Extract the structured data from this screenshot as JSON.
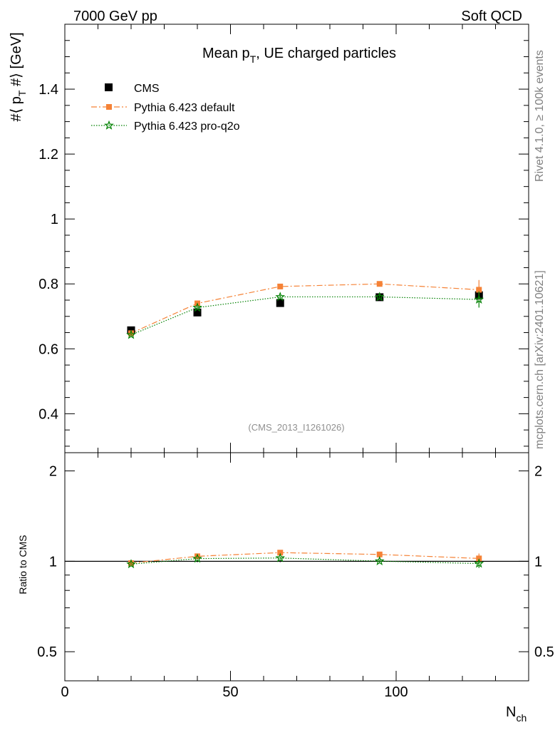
{
  "header": {
    "left": "7000 GeV pp",
    "right": "Soft QCD"
  },
  "side": {
    "rivet": "Rivet 4.1.0, ≥ 100k events",
    "mcplots": "mcplots.cern.ch [arXiv:2401.10621]"
  },
  "chart_data": {
    "type": "scatter",
    "title": "Mean p_T, UE charged particles",
    "analysis": "(CMS_2013_I1261026)",
    "ylabel": "#⟨ p_T #⟩ [GeV]",
    "xlabel": "N_ch",
    "xlim": [
      0,
      140
    ],
    "ylim": [
      0.28,
      1.6
    ],
    "xticks": [
      0,
      50,
      100
    ],
    "yticks": [
      0.4,
      0.6,
      0.8,
      1,
      1.2,
      1.4
    ],
    "ratio": {
      "ylabel": "Ratio to CMS",
      "ylim": [
        0.4,
        2.3
      ],
      "yticks": [
        0.5,
        1,
        2
      ],
      "yticklabels": [
        "0.5",
        "1",
        "2"
      ]
    },
    "x": [
      20,
      40,
      65,
      95,
      125
    ],
    "series": [
      {
        "name": "CMS",
        "role": "data",
        "color": "#000000",
        "marker": "square",
        "values": [
          0.657,
          0.712,
          0.741,
          0.759,
          0.765
        ],
        "errors": [
          0.005,
          0.005,
          0.005,
          0.006,
          0.007
        ]
      },
      {
        "name": "Pythia 6.423 default",
        "color": "#f58236",
        "marker": "square",
        "linestyle": "dashdot",
        "values": [
          0.648,
          0.74,
          0.792,
          0.8,
          0.782
        ],
        "errors": [
          0.004,
          0.004,
          0.005,
          0.006,
          0.03
        ]
      },
      {
        "name": "Pythia 6.423 pro-q2o",
        "color": "#008000",
        "marker": "star",
        "linestyle": "dotted",
        "values": [
          0.643,
          0.727,
          0.76,
          0.76,
          0.752
        ],
        "errors": [
          0.004,
          0.004,
          0.005,
          0.006,
          0.025
        ]
      }
    ]
  }
}
